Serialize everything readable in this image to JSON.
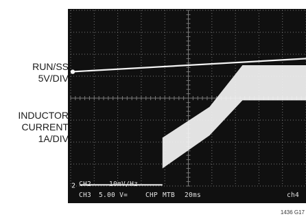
{
  "labels": {
    "run_ss": [
      "RUN/SS",
      "5V/DIV"
    ],
    "inductor": [
      "INDUCTOR",
      "CURRENT",
      "1A/DIV"
    ]
  },
  "screen": {
    "readout_row1": [
      "CH2",
      "10mV/Hz"
    ],
    "readout_row2": [
      "CH3",
      "5.00 V=",
      "CHP",
      "MTB",
      "20ms",
      "ch4"
    ],
    "ground_marker": "2"
  },
  "figure_id": "1436 G17",
  "colors": {
    "trace": "#f4f4f4",
    "grid": "#7a7a7a",
    "screen": "#101010"
  },
  "chart_data": {
    "type": "line",
    "title": "",
    "xlabel": "",
    "ylabel": "",
    "timebase": "20ms",
    "divisions": {
      "x": 10,
      "y": 8
    },
    "xlim": [
      0,
      10
    ],
    "series": [
      {
        "name": "RUN/SS",
        "scale": "5V/DIV",
        "x": [
          0,
          10
        ],
        "y": [
          5.2,
          5.8
        ]
      },
      {
        "name": "INDUCTOR CURRENT",
        "scale": "1A/DIV",
        "kind": "band",
        "x": [
          3.9,
          5.9,
          7.3,
          10
        ],
        "low": [
          0.8,
          2.3,
          3.9,
          3.9
        ],
        "high": [
          2.2,
          3.6,
          5.5,
          5.5
        ]
      }
    ]
  }
}
